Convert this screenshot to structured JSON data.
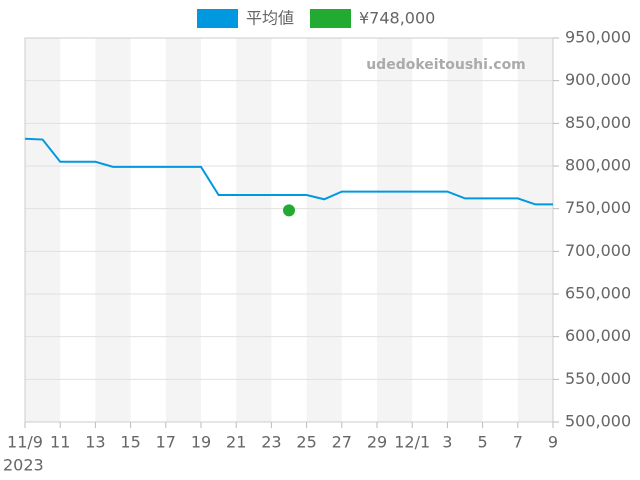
{
  "chart_data": {
    "type": "line",
    "watermark": "udedokeitoushi.com",
    "xlabel": "2023",
    "x": [
      "2023-11-09",
      "2023-11-10",
      "2023-11-11",
      "2023-11-12",
      "2023-11-13",
      "2023-11-14",
      "2023-11-15",
      "2023-11-16",
      "2023-11-17",
      "2023-11-18",
      "2023-11-19",
      "2023-11-20",
      "2023-11-21",
      "2023-11-22",
      "2023-11-23",
      "2023-11-24",
      "2023-11-25",
      "2023-11-26",
      "2023-11-27",
      "2023-11-28",
      "2023-11-29",
      "2023-11-30",
      "2023-12-01",
      "2023-12-02",
      "2023-12-03",
      "2023-12-04",
      "2023-12-05",
      "2023-12-06",
      "2023-12-07",
      "2023-12-08",
      "2023-12-09"
    ],
    "series": [
      {
        "name": "平均値",
        "color": "#0099e0",
        "type": "line",
        "values": [
          832000,
          831000,
          805000,
          805000,
          805000,
          799000,
          799000,
          799000,
          799000,
          799000,
          799000,
          766000,
          766000,
          766000,
          766000,
          766000,
          766000,
          761000,
          770000,
          770000,
          770000,
          770000,
          770000,
          770000,
          770000,
          762000,
          762000,
          762000,
          762000,
          755000,
          755000
        ]
      },
      {
        "name": "¥748,000",
        "color": "#22aa33",
        "type": "scatter",
        "values": [
          null,
          null,
          null,
          null,
          null,
          null,
          null,
          null,
          null,
          null,
          null,
          null,
          null,
          null,
          null,
          748000,
          null,
          null,
          null,
          null,
          null,
          null,
          null,
          null,
          null,
          null,
          null,
          null,
          null,
          null,
          null
        ]
      }
    ],
    "xlim": [
      "2023-11-09",
      "2023-12-09"
    ],
    "xticks": [
      {
        "value": "2023-11-09",
        "label": "11/9"
      },
      {
        "value": "2023-11-11",
        "label": "11"
      },
      {
        "value": "2023-11-13",
        "label": "13"
      },
      {
        "value": "2023-11-15",
        "label": "15"
      },
      {
        "value": "2023-11-17",
        "label": "17"
      },
      {
        "value": "2023-11-19",
        "label": "19"
      },
      {
        "value": "2023-11-21",
        "label": "21"
      },
      {
        "value": "2023-11-23",
        "label": "23"
      },
      {
        "value": "2023-11-25",
        "label": "25"
      },
      {
        "value": "2023-11-27",
        "label": "27"
      },
      {
        "value": "2023-11-29",
        "label": "29"
      },
      {
        "value": "2023-12-01",
        "label": "12/1"
      },
      {
        "value": "2023-12-03",
        "label": "3"
      },
      {
        "value": "2023-12-05",
        "label": "5"
      },
      {
        "value": "2023-12-07",
        "label": "7"
      },
      {
        "value": "2023-12-09",
        "label": "9"
      }
    ],
    "ylim": [
      500000,
      950000
    ],
    "yticks": [
      {
        "value": 500000,
        "label": "500,000"
      },
      {
        "value": 550000,
        "label": "550,000"
      },
      {
        "value": 600000,
        "label": "600,000"
      },
      {
        "value": 650000,
        "label": "650,000"
      },
      {
        "value": 700000,
        "label": "700,000"
      },
      {
        "value": 750000,
        "label": "750,000"
      },
      {
        "value": 800000,
        "label": "800,000"
      },
      {
        "value": 850000,
        "label": "850,000"
      },
      {
        "value": 900000,
        "label": "900,000"
      },
      {
        "value": 950000,
        "label": "950,000"
      }
    ],
    "grid": true,
    "legend": "top"
  }
}
